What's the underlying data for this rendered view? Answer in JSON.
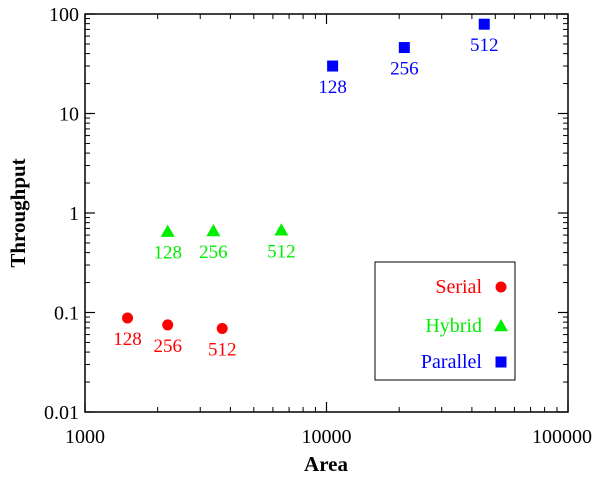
{
  "chart_data": {
    "type": "scatter",
    "title": "",
    "xlabel": "Area",
    "ylabel": "Throughput",
    "xscale": "log",
    "yscale": "log",
    "xlim": [
      1000,
      100000
    ],
    "ylim": [
      0.01,
      100
    ],
    "xticks": [
      "1000",
      "10000",
      "100000"
    ],
    "yticks": [
      "0.01",
      "0.1",
      "1",
      "10",
      "100"
    ],
    "legend_position": "bottom-right",
    "series": [
      {
        "name": "Serial",
        "color": "#ff0000",
        "marker": "circle",
        "points": [
          {
            "x": 1500,
            "y": 0.088,
            "label": "128"
          },
          {
            "x": 2200,
            "y": 0.075,
            "label": "256"
          },
          {
            "x": 3700,
            "y": 0.069,
            "label": "512"
          }
        ]
      },
      {
        "name": "Hybrid",
        "color": "#00ee00",
        "marker": "triangle",
        "points": [
          {
            "x": 2200,
            "y": 0.65,
            "label": "128"
          },
          {
            "x": 3400,
            "y": 0.66,
            "label": "256"
          },
          {
            "x": 6500,
            "y": 0.67,
            "label": "512"
          }
        ]
      },
      {
        "name": "Parallel",
        "color": "#0000ff",
        "marker": "square",
        "points": [
          {
            "x": 10600,
            "y": 30,
            "label": "128"
          },
          {
            "x": 21000,
            "y": 46,
            "label": "256"
          },
          {
            "x": 45000,
            "y": 79,
            "label": "512"
          }
        ]
      }
    ]
  }
}
